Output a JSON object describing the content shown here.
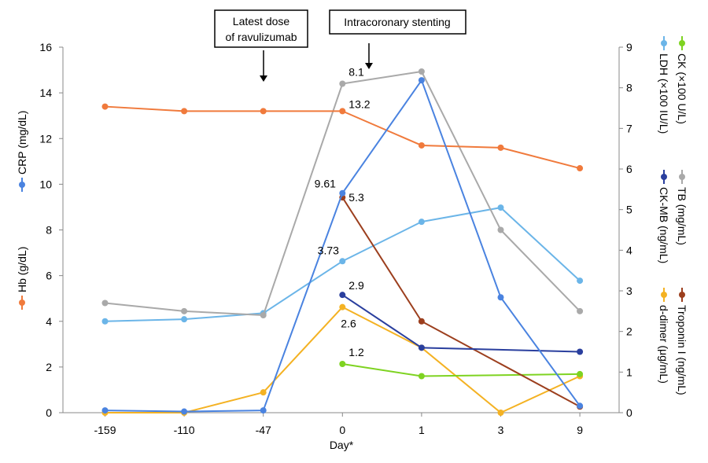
{
  "chart_data": {
    "type": "line",
    "categories": [
      "-159",
      "-110",
      "-47",
      "0",
      "1",
      "3",
      "9"
    ],
    "xlabel": "Day*",
    "left_axis": {
      "ylim": [
        0,
        16
      ],
      "ticks": [
        0,
        2,
        4,
        6,
        8,
        10,
        12,
        14,
        16
      ],
      "labels": [
        "CRP (mg/dL)",
        "Hb (g/dL)"
      ]
    },
    "right_axis": {
      "ylim": [
        0,
        9
      ],
      "ticks": [
        0,
        1,
        2,
        3,
        4,
        5,
        6,
        7,
        8,
        9
      ],
      "labels": [
        "CK (×100 U/L)",
        "LDH (×100 IU/L)",
        "TB (mg/mL)",
        "CK-MB (ng/mL)",
        "Troponin I (ng/mL)",
        "d-dimer (μg/mL)"
      ]
    },
    "series": [
      {
        "name": "Hb (g/dL)",
        "axis": "left",
        "color": "#f07a3c",
        "x": [
          "-159",
          "-110",
          "-47",
          "0",
          "1",
          "3",
          "9"
        ],
        "values": [
          13.4,
          13.2,
          13.2,
          13.2,
          11.7,
          11.6,
          10.7
        ]
      },
      {
        "name": "CRP (mg/dL)",
        "axis": "left",
        "color": "#4a83e0",
        "x": [
          "-159",
          "-110",
          "-47",
          "0",
          "1",
          "3",
          "9"
        ],
        "values": [
          0.1,
          0.05,
          0.1,
          9.61,
          14.55,
          5.05,
          0.3
        ]
      },
      {
        "name": "TB (mg/mL)",
        "axis": "right",
        "color": "#a9a9a9",
        "x": [
          "-159",
          "-110",
          "-47",
          "0",
          "1",
          "3",
          "9"
        ],
        "values": [
          2.7,
          2.5,
          2.4,
          8.1,
          8.4,
          4.5,
          2.5
        ]
      },
      {
        "name": "LDH (×100 IU/L)",
        "axis": "right",
        "color": "#6bb5e8",
        "x": [
          "-159",
          "-110",
          "-47",
          "0",
          "1",
          "3",
          "9"
        ],
        "values": [
          2.25,
          2.3,
          2.45,
          3.73,
          4.7,
          5.05,
          3.25
        ]
      },
      {
        "name": "CK-MB (ng/mL)",
        "axis": "right",
        "color": "#2a3f9e",
        "x": [
          "0",
          "1",
          "9"
        ],
        "values": [
          2.9,
          1.6,
          1.5
        ]
      },
      {
        "name": "Troponin I (ng/mL)",
        "axis": "right",
        "color": "#9c3f1e",
        "x": [
          "0",
          "1",
          "9"
        ],
        "values": [
          5.3,
          2.25,
          0.15
        ]
      },
      {
        "name": "d-dimer (μg/mL)",
        "axis": "right",
        "color": "#f4b223",
        "x": [
          "-159",
          "-110",
          "-47",
          "0",
          "1",
          "3",
          "9"
        ],
        "values": [
          0.0,
          0.0,
          0.5,
          2.6,
          1.6,
          0.0,
          0.9
        ]
      },
      {
        "name": "CK (×100 U/L)",
        "axis": "right",
        "color": "#7ed321",
        "x": [
          "0",
          "1",
          "9"
        ],
        "values": [
          1.2,
          0.9,
          0.95
        ]
      }
    ],
    "data_labels": [
      {
        "text": "13.2",
        "series": "Hb (g/dL)",
        "x": "0"
      },
      {
        "text": "9.61",
        "series": "CRP (mg/dL)",
        "x": "0"
      },
      {
        "text": "8.1",
        "series": "TB (mg/mL)",
        "x": "0"
      },
      {
        "text": "3.73",
        "series": "LDH (×100 IU/L)",
        "x": "0"
      },
      {
        "text": "5.3",
        "series": "Troponin I (ng/mL)",
        "x": "0"
      },
      {
        "text": "2.9",
        "series": "CK-MB (ng/mL)",
        "x": "0"
      },
      {
        "text": "2.6",
        "series": "d-dimer (μg/mL)",
        "x": "0"
      },
      {
        "text": "1.2",
        "series": "CK (×100 U/L)",
        "x": "0"
      }
    ],
    "annotations": [
      {
        "lines": [
          "Latest dose",
          "of ravulizumab"
        ],
        "x": "-47"
      },
      {
        "lines": [
          "Intracoronary stenting"
        ],
        "x": "0"
      }
    ]
  }
}
